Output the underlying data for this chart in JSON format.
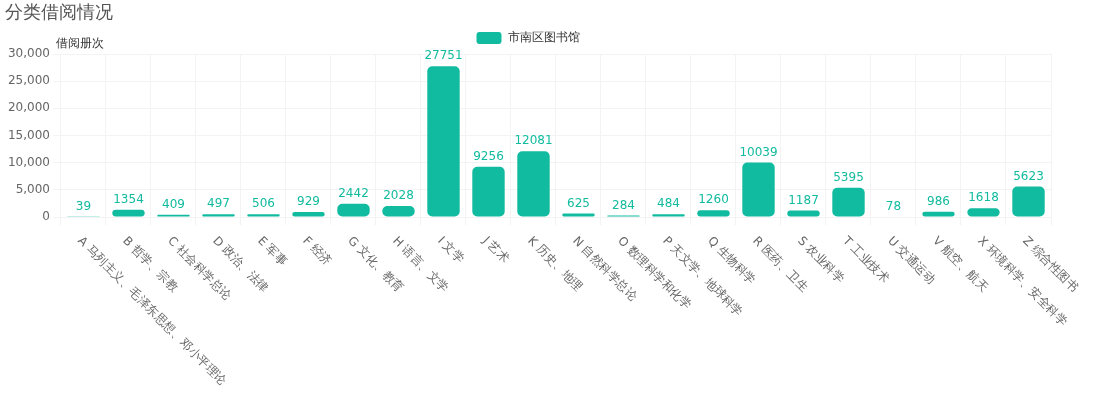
{
  "chart_data": {
    "type": "bar",
    "title": "分类借阅情况",
    "ylabel": "借阅册次",
    "categories": [
      "A 马列主义、毛泽东思想、邓小平理论",
      "B 哲学、宗教",
      "C 社会科学总论",
      "D 政治、法律",
      "E 军事",
      "F 经济",
      "G 文化、教育",
      "H 语言、文学",
      "I 文学",
      "J 艺术",
      "K 历史、地理",
      "N 自然科学总论",
      "O 数理科学和化学",
      "P 天文学、地球科学",
      "Q 生物科学",
      "R 医药、卫生",
      "S 农业科学",
      "T 工业技术",
      "U 交通运动",
      "V 航空、航天",
      "X 环境科学、安全科学",
      "Z 综合性图书"
    ],
    "series": [
      {
        "name": "市南区图书馆",
        "color": "#11bb9f",
        "values": [
          39,
          1354,
          409,
          497,
          506,
          929,
          2442,
          2028,
          27751,
          9256,
          12081,
          625,
          284,
          484,
          1260,
          10039,
          1187,
          5395,
          78,
          986,
          1618,
          5623
        ]
      }
    ],
    "ylim": [
      0,
      30000
    ],
    "yticks": [
      0,
      {
        "value": 5000,
        "label": "5,000"
      },
      {
        "value": 10000,
        "label": "10,000"
      },
      {
        "value": 15000,
        "label": "15,000"
      },
      {
        "value": 20000,
        "label": "20,000"
      },
      {
        "value": 25000,
        "label": "25,000"
      },
      {
        "value": 30000,
        "label": "30,000"
      }
    ],
    "grid": true,
    "legend": "top",
    "data_labels": true
  }
}
